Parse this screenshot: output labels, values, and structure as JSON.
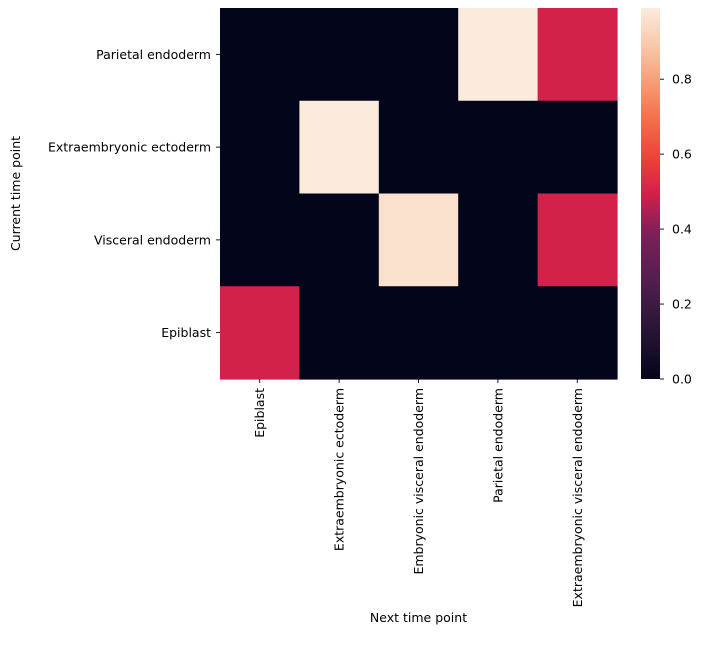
{
  "chart_data": {
    "type": "heatmap",
    "title": "",
    "xlabel": "Next time point",
    "ylabel": "Current time point",
    "x_categories": [
      "Epiblast",
      "Extraembryonic ectoderm",
      "Embryonic visceral endoderm",
      "Parietal endoderm",
      "Extraembryonic visceral endoderm"
    ],
    "y_categories": [
      "Parietal endoderm",
      "Extraembryonic ectoderm",
      "Visceral endoderm",
      "Epiblast"
    ],
    "values": [
      [
        0.0,
        0.0,
        0.0,
        0.99,
        0.5
      ],
      [
        0.0,
        0.99,
        0.0,
        0.0,
        0.0
      ],
      [
        0.0,
        0.0,
        0.96,
        0.0,
        0.5
      ],
      [
        0.5,
        0.0,
        0.0,
        0.0,
        0.0
      ]
    ],
    "colorbar": {
      "colormap": "rocket",
      "vmin": 0.0,
      "vmax": 0.99,
      "ticks": [
        0.0,
        0.2,
        0.4,
        0.6,
        0.8
      ],
      "tick_labels": [
        "0.0",
        "0.2",
        "0.4",
        "0.6",
        "0.8"
      ]
    },
    "grid": false,
    "legend": "colorbar-right"
  }
}
